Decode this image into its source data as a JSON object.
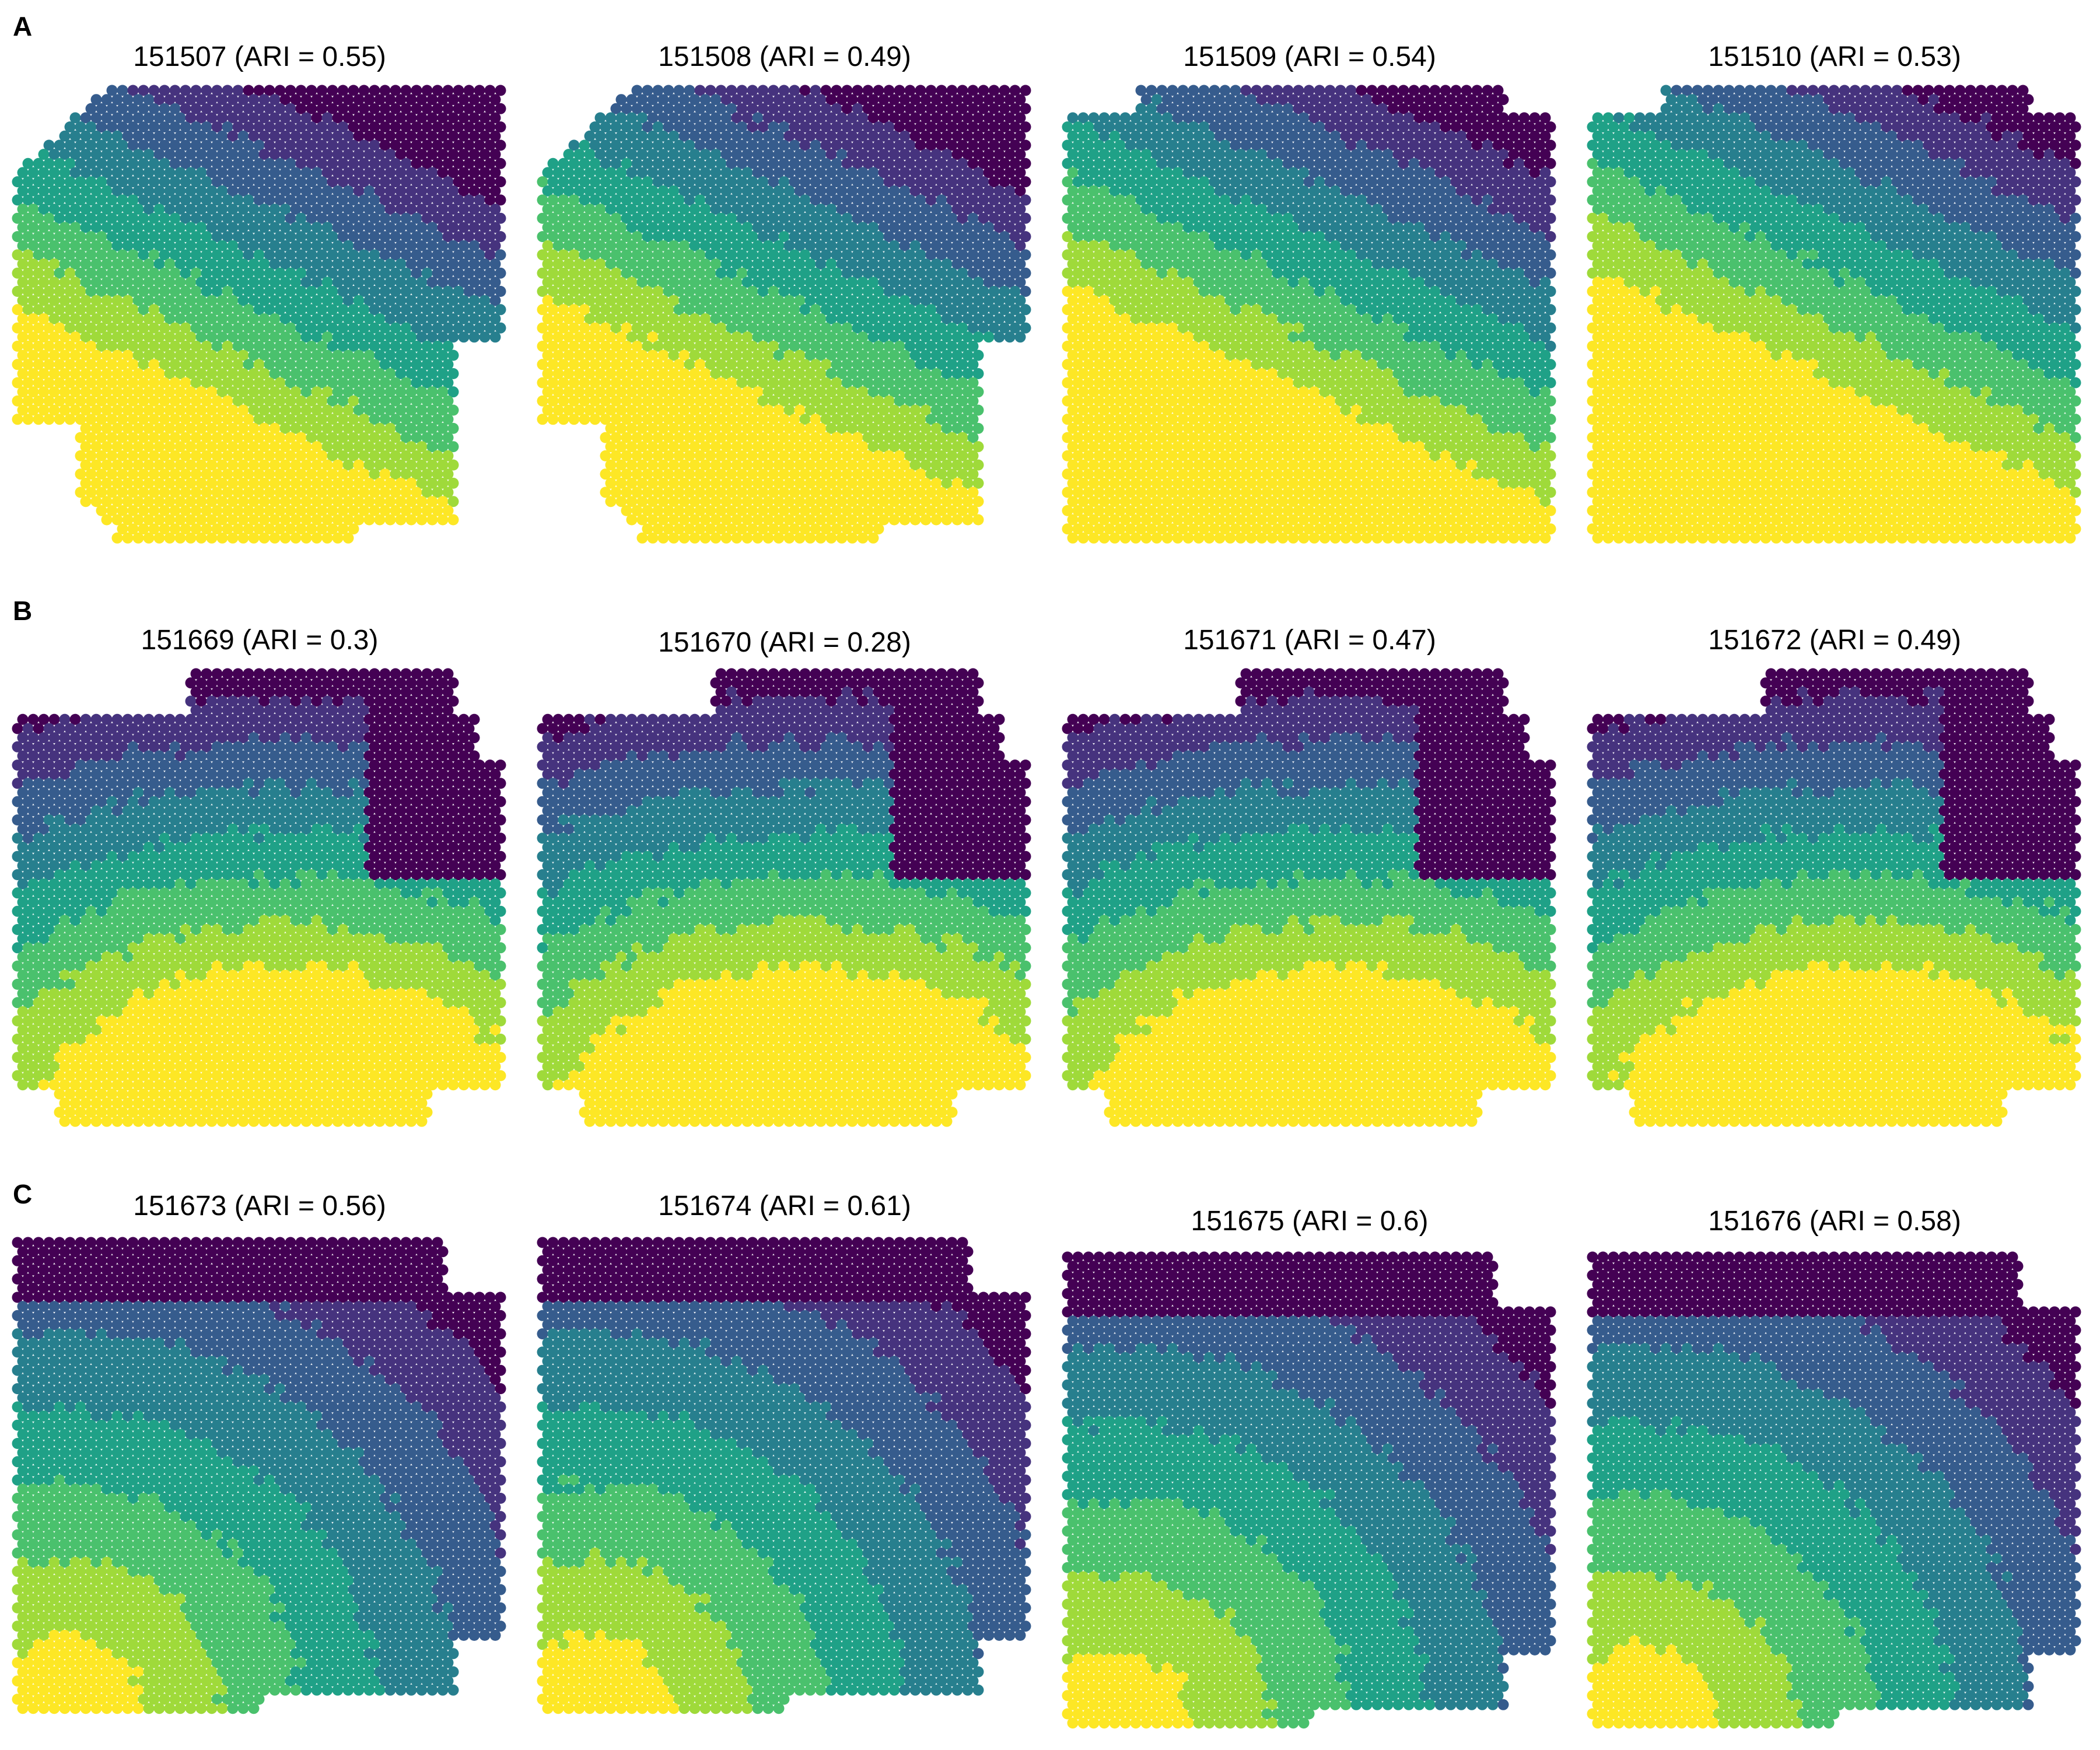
{
  "palette": [
    "#440154",
    "#46337e",
    "#365c8d",
    "#277f8e",
    "#1fa187",
    "#4ac16d",
    "#9fda3a",
    "#fde725"
  ],
  "rows": [
    {
      "label": "A",
      "panels": [
        {
          "sample": "151507",
          "ari": "0.55",
          "title": "151507 (ARI = 0.55)",
          "pattern": "diagonal"
        },
        {
          "sample": "151508",
          "ari": "0.49",
          "title": "151508 (ARI = 0.49)",
          "pattern": "diagonal"
        },
        {
          "sample": "151509",
          "ari": "0.54",
          "title": "151509 (ARI = 0.54)",
          "pattern": "diagonal"
        },
        {
          "sample": "151510",
          "ari": "0.53",
          "title": "151510 (ARI = 0.53)",
          "pattern": "diagonal"
        }
      ]
    },
    {
      "label": "B",
      "panels": [
        {
          "sample": "151669",
          "ari": "0.3",
          "title": "151669 (ARI = 0.3)",
          "pattern": "arch"
        },
        {
          "sample": "151670",
          "ari": "0.28",
          "title": "151670 (ARI = 0.28)",
          "pattern": "arch"
        },
        {
          "sample": "151671",
          "ari": "0.47",
          "title": "151671 (ARI = 0.47)",
          "pattern": "arch"
        },
        {
          "sample": "151672",
          "ari": "0.49",
          "title": "151672 (ARI = 0.49)",
          "pattern": "arch"
        }
      ]
    },
    {
      "label": "C",
      "panels": [
        {
          "sample": "151673",
          "ari": "0.56",
          "title": "151673 (ARI = 0.56)",
          "pattern": "corner"
        },
        {
          "sample": "151674",
          "ari": "0.61",
          "title": "151674 (ARI = 0.61)",
          "pattern": "corner"
        },
        {
          "sample": "151675",
          "ari": "0.6",
          "title": "151675 (ARI = 0.6)",
          "pattern": "corner"
        },
        {
          "sample": "151676",
          "ari": "0.58",
          "title": "151676 (ARI = 0.58)",
          "pattern": "corner"
        }
      ]
    }
  ]
}
